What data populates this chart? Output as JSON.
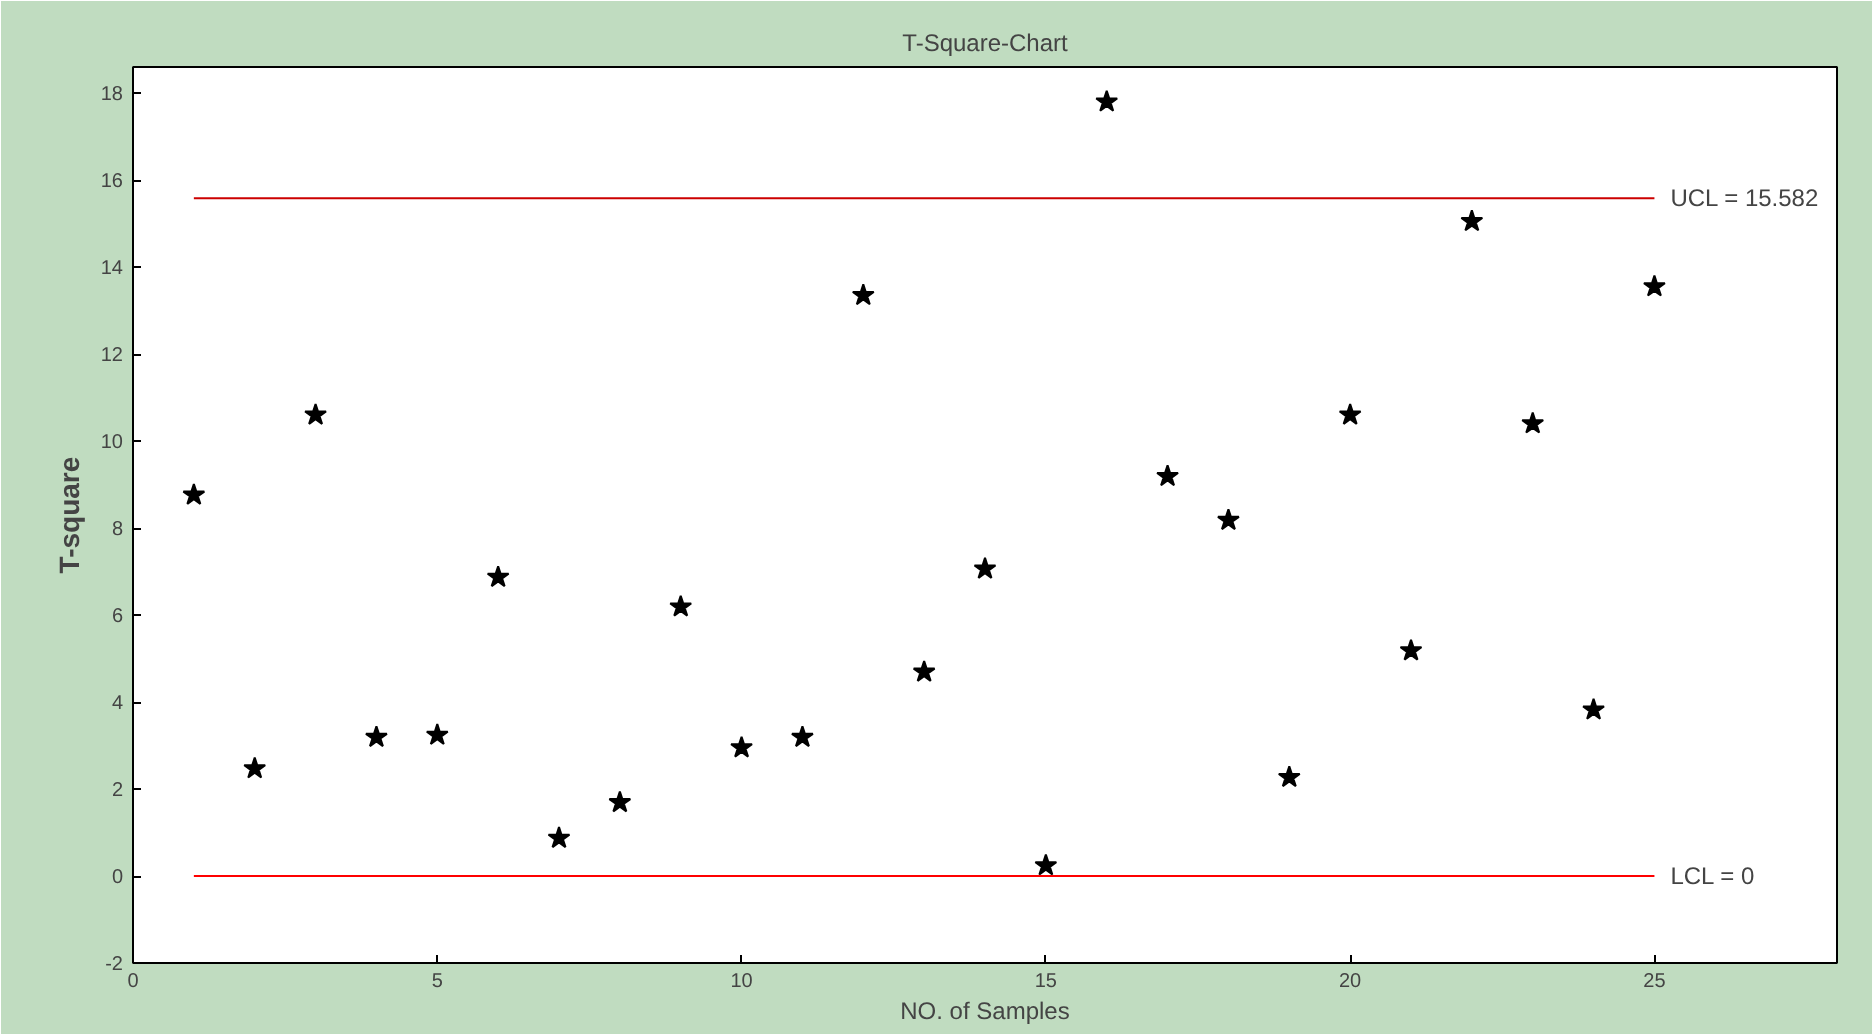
{
  "chart_data": {
    "type": "scatter",
    "title": "T-Square-Chart",
    "xlabel": "NO. of Samples",
    "ylabel": "T-square",
    "x": [
      1,
      2,
      3,
      4,
      5,
      6,
      7,
      8,
      9,
      10,
      11,
      12,
      13,
      14,
      15,
      16,
      17,
      18,
      19,
      20,
      21,
      22,
      23,
      24,
      25
    ],
    "series": [
      {
        "color": "#000000",
        "values": [
          8.76,
          2.47,
          10.6,
          3.19,
          3.24,
          6.87,
          0.87,
          1.69,
          6.19,
          2.95,
          3.19,
          13.35,
          4.69,
          7.06,
          0.24,
          17.8,
          9.19,
          8.18,
          2.27,
          10.6,
          5.18,
          15.05,
          10.4,
          3.82,
          13.55
        ]
      }
    ],
    "marker": "star",
    "grid": false,
    "xlim": [
      0,
      28
    ],
    "xticks": [
      0,
      5,
      10,
      15,
      20,
      25
    ],
    "ylim": [
      -2,
      18.6
    ],
    "yticks": [
      -2,
      0,
      2,
      4,
      6,
      8,
      10,
      12,
      14,
      16,
      18
    ],
    "ref_lines": [
      {
        "axis": "y",
        "value": 15.582,
        "label": "UCL = 15.582",
        "color": "#cc0000"
      },
      {
        "axis": "y",
        "value": 0,
        "label": "LCL = 0",
        "color": "#ff0000"
      }
    ]
  }
}
